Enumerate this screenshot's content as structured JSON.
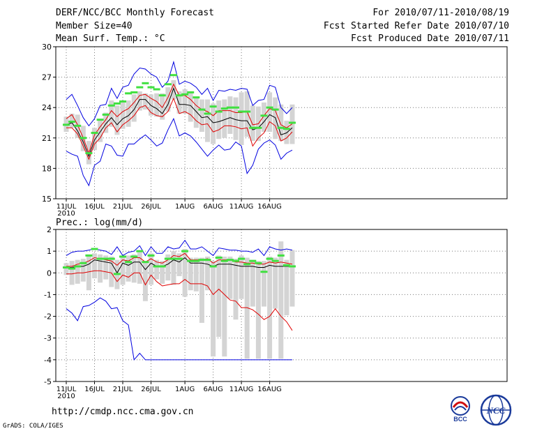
{
  "header": {
    "title": "DERF/NCC/BCC Monthly Forecast",
    "member_size": "Member Size=40",
    "variable": "Mean Surf. Temp.: °C",
    "period": "For 2010/07/11-2010/08/19",
    "refer_date": "Fcst Started Refer Date 2010/07/10",
    "produced_date": "Fcst Produced Date 2010/07/11"
  },
  "footer": {
    "url": "http://cmdp.ncc.cma.gov.cn",
    "grads": "GrADS: COLA/IGES",
    "logo_left": "BCC",
    "logo_right": "NCC"
  },
  "colors": {
    "mean": "#000000",
    "spread": "#e00000",
    "extreme": "#0000e0",
    "observed": "#40e040",
    "box": "#d4d4d4"
  },
  "chart_data": [
    {
      "type": "box-ensemble",
      "title": "Mean Surf. Temp.: °C",
      "xlabel": "",
      "ylabel": "°C",
      "ylim": [
        15,
        30
      ],
      "yticks": [
        15,
        18,
        21,
        24,
        27,
        30
      ],
      "xticks": [
        {
          "day": 0,
          "label": "11JUL"
        },
        {
          "day": 5,
          "label": "16JUL"
        },
        {
          "day": 10,
          "label": "21JUL"
        },
        {
          "day": 15,
          "label": "26JUL"
        },
        {
          "day": 21,
          "label": "1AUG"
        },
        {
          "day": 26,
          "label": "6AUG"
        },
        {
          "day": 31,
          "label": "11AUG"
        },
        {
          "day": 36,
          "label": "16AUG"
        }
      ],
      "year_label": "2010",
      "series": [
        {
          "name": "max",
          "values": [
            24.8,
            25.3,
            24.2,
            23.0,
            22.2,
            22.9,
            24.2,
            24.3,
            25.9,
            24.9,
            26.0,
            26.2,
            27.3,
            27.9,
            27.8,
            27.3,
            27.0,
            26.0,
            26.6,
            28.5,
            26.3,
            26.6,
            26.4,
            26.0,
            25.3,
            25.9,
            24.7,
            25.7,
            25.6,
            25.8,
            25.7,
            25.9,
            25.8,
            24.2,
            24.7,
            24.8,
            26.2,
            26.0,
            24.0,
            23.4,
            24.0
          ]
        },
        {
          "name": "upper",
          "values": [
            22.9,
            23.3,
            22.3,
            21.0,
            19.5,
            21.3,
            22.1,
            22.8,
            23.7,
            23.1,
            23.6,
            23.9,
            24.5,
            25.2,
            25.3,
            24.9,
            24.6,
            24.0,
            25.0,
            26.3,
            25.2,
            25.2,
            24.8,
            24.2,
            23.8,
            23.6,
            23.2,
            23.7,
            23.7,
            23.7,
            23.5,
            23.5,
            23.6,
            22.3,
            22.4,
            23.2,
            23.9,
            23.7,
            22.3,
            22.0,
            22.4
          ]
        },
        {
          "name": "mean",
          "values": [
            22.3,
            22.5,
            21.7,
            20.6,
            19.2,
            20.8,
            21.6,
            22.4,
            23.0,
            22.3,
            22.9,
            23.2,
            23.8,
            24.8,
            24.8,
            24.2,
            23.9,
            23.4,
            24.3,
            25.9,
            24.3,
            24.3,
            24.2,
            23.6,
            23.0,
            23.1,
            22.5,
            22.6,
            22.8,
            23.0,
            22.8,
            22.7,
            22.7,
            21.8,
            22.0,
            22.6,
            23.3,
            23.0,
            21.3,
            21.5,
            22.0
          ]
        },
        {
          "name": "lower",
          "values": [
            22.0,
            22.0,
            21.4,
            20.2,
            18.9,
            20.4,
            21.0,
            22.0,
            22.5,
            21.6,
            22.3,
            22.7,
            23.2,
            24.0,
            24.2,
            23.5,
            23.2,
            23.1,
            23.6,
            24.9,
            23.4,
            23.6,
            23.3,
            22.7,
            22.3,
            22.4,
            21.6,
            21.8,
            22.2,
            22.2,
            22.1,
            21.9,
            22.0,
            20.2,
            21.0,
            21.5,
            22.6,
            22.2,
            20.7,
            21.0,
            21.6
          ]
        },
        {
          "name": "min",
          "values": [
            19.7,
            19.4,
            19.2,
            17.3,
            16.3,
            18.3,
            18.7,
            20.4,
            20.2,
            19.3,
            19.2,
            20.4,
            20.4,
            20.9,
            21.3,
            20.8,
            20.2,
            20.5,
            21.8,
            22.9,
            21.2,
            21.5,
            21.2,
            20.6,
            19.9,
            19.2,
            19.8,
            20.3,
            19.8,
            19.9,
            20.6,
            20.2,
            17.5,
            18.3,
            19.9,
            20.5,
            20.8,
            20.3,
            18.9,
            19.5,
            19.8
          ]
        },
        {
          "name": "observed",
          "values": [
            22.3,
            22.6,
            22.2,
            21.0,
            19.5,
            21.5,
            22.8,
            23.3,
            24.2,
            24.4,
            24.6,
            25.4,
            25.5,
            26.0,
            26.4,
            26.0,
            25.8,
            25.2,
            26.3,
            27.2,
            25.2,
            25.3,
            25.5,
            25.0,
            23.8,
            23.4,
            24.1,
            23.6,
            23.9,
            24.0,
            24.0,
            23.6,
            23.6,
            22.0,
            22.0,
            23.2,
            24.0,
            23.8,
            22.0,
            21.9,
            22.5
          ]
        },
        {
          "name": "box_top",
          "values": [
            23.1,
            23.4,
            23.3,
            22.2,
            20.7,
            22.0,
            22.7,
            23.5,
            24.7,
            24.2,
            24.6,
            24.7,
            25.3,
            25.6,
            25.4,
            25.3,
            25.4,
            25.4,
            26.0,
            26.7,
            25.6,
            25.8,
            25.6,
            25.0,
            24.8,
            24.8,
            24.4,
            24.7,
            24.8,
            25.1,
            25.0,
            25.5,
            25.6,
            24.2,
            24.1,
            24.5,
            25.5,
            25.0,
            24.3,
            22.7,
            24.3
          ]
        },
        {
          "name": "box_bottom",
          "values": [
            21.6,
            22.0,
            21.0,
            19.7,
            18.4,
            19.8,
            20.6,
            21.5,
            22.1,
            21.3,
            21.9,
            22.1,
            22.6,
            23.7,
            23.8,
            23.2,
            23.1,
            22.8,
            23.6,
            24.8,
            23.4,
            23.4,
            22.6,
            22.0,
            21.6,
            20.6,
            20.4,
            20.9,
            21.0,
            21.4,
            20.8,
            20.3,
            21.1,
            20.7,
            20.7,
            21.6,
            21.6,
            20.9,
            20.7,
            20.4,
            20.4
          ]
        }
      ]
    },
    {
      "type": "box-ensemble",
      "title": "Prec.: log(mm/d)",
      "xlabel": "",
      "ylabel": "log(mm/d)",
      "ylim": [
        -5,
        2
      ],
      "yticks": [
        -5,
        -4,
        -3,
        -2,
        -1,
        0,
        1,
        2
      ],
      "xticks": [
        {
          "day": 0,
          "label": "11JUL"
        },
        {
          "day": 5,
          "label": "16JUL"
        },
        {
          "day": 10,
          "label": "21JUL"
        },
        {
          "day": 15,
          "label": "26JUL"
        },
        {
          "day": 21,
          "label": "1AUG"
        },
        {
          "day": 26,
          "label": "6AUG"
        },
        {
          "day": 31,
          "label": "11AUG"
        },
        {
          "day": 36,
          "label": "16AUG"
        }
      ],
      "year_label": "2010",
      "series": [
        {
          "name": "max",
          "values": [
            0.8,
            0.95,
            1.0,
            1.0,
            1.05,
            1.1,
            1.05,
            1.0,
            0.85,
            1.2,
            0.8,
            0.95,
            1.0,
            1.25,
            0.8,
            1.2,
            0.9,
            0.9,
            1.2,
            1.1,
            1.15,
            1.5,
            1.1,
            1.1,
            1.2,
            1.0,
            0.8,
            1.15,
            1.1,
            1.05,
            1.05,
            1.0,
            1.0,
            0.95,
            1.1,
            0.8,
            1.2,
            1.1,
            1.05,
            1.1,
            1.05
          ]
        },
        {
          "name": "upper",
          "values": [
            0.3,
            0.3,
            0.4,
            0.45,
            0.55,
            0.7,
            0.65,
            0.6,
            0.55,
            0.35,
            0.6,
            0.55,
            0.7,
            0.7,
            0.5,
            0.65,
            0.5,
            0.45,
            0.6,
            0.8,
            0.75,
            0.9,
            0.6,
            0.6,
            0.6,
            0.65,
            0.45,
            0.6,
            0.6,
            0.6,
            0.5,
            0.5,
            0.45,
            0.45,
            0.4,
            0.4,
            0.5,
            0.45,
            0.5,
            0.45,
            0.4
          ]
        },
        {
          "name": "mean",
          "values": [
            0.25,
            0.25,
            0.3,
            0.3,
            0.4,
            0.6,
            0.55,
            0.5,
            0.45,
            0.0,
            0.45,
            0.35,
            0.5,
            0.5,
            0.15,
            0.45,
            0.3,
            0.3,
            0.4,
            0.6,
            0.5,
            0.7,
            0.45,
            0.45,
            0.45,
            0.4,
            0.3,
            0.4,
            0.4,
            0.4,
            0.35,
            0.3,
            0.3,
            0.3,
            0.25,
            0.25,
            0.35,
            0.3,
            0.3,
            0.3,
            0.3
          ]
        },
        {
          "name": "lower",
          "values": [
            -0.05,
            -0.05,
            0.0,
            0.0,
            0.05,
            0.1,
            0.1,
            0.05,
            0.0,
            -0.4,
            -0.1,
            -0.2,
            0.0,
            0.0,
            -0.55,
            -0.1,
            -0.4,
            -0.6,
            -0.55,
            -0.5,
            -0.5,
            -0.3,
            -0.5,
            -0.5,
            -0.5,
            -0.6,
            -1.0,
            -0.75,
            -1.0,
            -1.25,
            -1.3,
            -1.6,
            -1.6,
            -1.7,
            -1.9,
            -2.15,
            -2.0,
            -1.65,
            -2.0,
            -2.25,
            -2.65
          ]
        },
        {
          "name": "min",
          "values": [
            -1.65,
            -1.85,
            -2.2,
            -1.55,
            -1.5,
            -1.35,
            -1.15,
            -1.3,
            -1.65,
            -1.6,
            -2.2,
            -2.4,
            -4.0,
            -3.7,
            -4.0,
            -4.0,
            -4.0,
            -4.0,
            -4.0,
            -4.0,
            -4.0,
            -4.0,
            -4.0,
            -4.0,
            -4.0,
            -4.0,
            -4.0,
            -4.0,
            -4.0,
            -4.0,
            -4.0,
            -4.0,
            -4.0,
            -4.0,
            -4.0,
            -4.0,
            -4.0,
            -4.0,
            -4.0,
            -4.0,
            -4.0
          ]
        },
        {
          "name": "observed",
          "values": [
            0.25,
            0.2,
            0.3,
            0.45,
            0.8,
            1.1,
            0.65,
            0.65,
            0.65,
            -0.05,
            0.75,
            0.5,
            0.75,
            1.0,
            0.5,
            0.8,
            0.3,
            0.3,
            0.65,
            0.65,
            0.65,
            1.0,
            0.55,
            0.55,
            0.6,
            0.6,
            0.3,
            0.7,
            0.55,
            0.6,
            0.55,
            0.65,
            0.4,
            0.55,
            0.45,
            0.05,
            0.65,
            0.55,
            0.8,
            0.35,
            0.3
          ]
        },
        {
          "name": "box_top",
          "values": [
            0.45,
            0.55,
            0.6,
            0.65,
            0.85,
            0.9,
            0.85,
            0.8,
            0.75,
            0.6,
            0.8,
            0.8,
            0.85,
            0.95,
            0.55,
            0.9,
            0.6,
            0.55,
            0.85,
            1.0,
            0.9,
            1.1,
            0.7,
            0.7,
            0.7,
            0.75,
            0.55,
            0.8,
            0.75,
            0.75,
            0.65,
            0.8,
            0.7,
            0.6,
            0.55,
            0.55,
            0.75,
            0.7,
            1.45,
            0.6,
            1.05
          ]
        },
        {
          "name": "box_bottom",
          "values": [
            -0.1,
            -0.55,
            -0.5,
            -0.4,
            -0.8,
            -0.25,
            -0.45,
            -0.3,
            -0.65,
            -0.75,
            -0.55,
            -0.4,
            -0.45,
            -0.5,
            -1.3,
            -0.55,
            -0.3,
            -0.5,
            -0.35,
            -0.55,
            -0.15,
            -1.1,
            -0.8,
            -0.85,
            -2.3,
            -0.8,
            -3.85,
            -2.95,
            -3.85,
            -1.2,
            -2.15,
            -1.2,
            -3.95,
            -1.55,
            -3.95,
            -1.55,
            -3.95,
            -1.65,
            -3.95,
            -1.95,
            -1.55
          ]
        }
      ]
    }
  ]
}
